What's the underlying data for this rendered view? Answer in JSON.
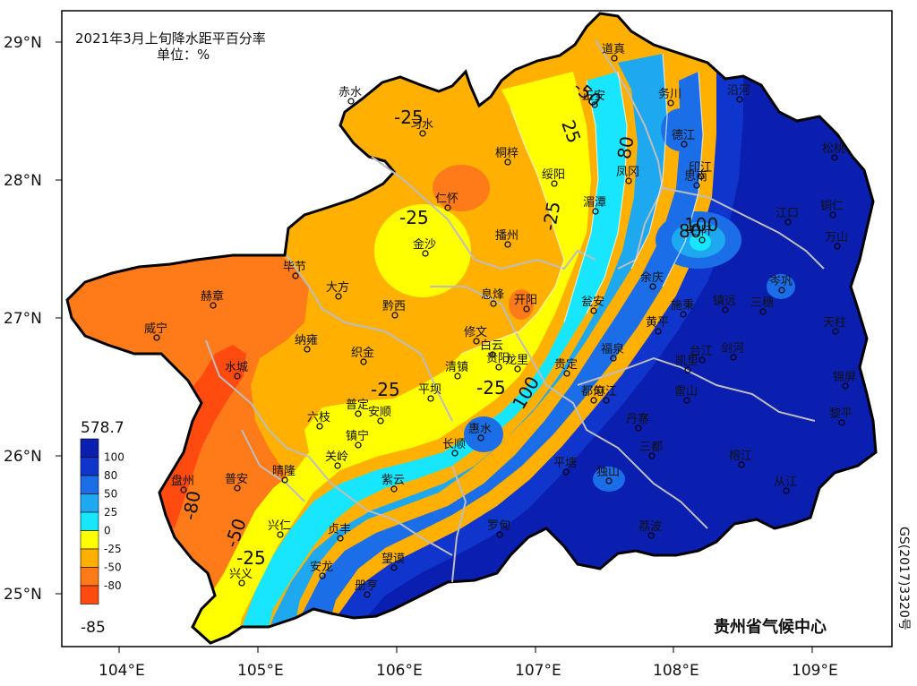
{
  "title": "2021年3月上旬降水距平百分率",
  "unit": "单位：%",
  "credit": "贵州省气候中心",
  "map_code": "GS(2017)3320号",
  "axes": {
    "lat_labels": [
      "29°N",
      "28°N",
      "27°N",
      "26°N",
      "25°N"
    ],
    "lon_labels": [
      "104°E",
      "105°E",
      "106°E",
      "107°E",
      "108°E",
      "109°E"
    ]
  },
  "legend": {
    "max_label": "578.7",
    "min_label": "-85",
    "levels": [
      "100",
      "80",
      "50",
      "25",
      "0",
      "-25",
      "-50",
      "-80"
    ],
    "colors": [
      "#0a1fb0",
      "#1035cc",
      "#1c6ee8",
      "#1ea8f0",
      "#18e6ff",
      "#ffff00",
      "#ffb000",
      "#ff7a18",
      "#ff4a10"
    ]
  },
  "contour_labels": [
    "-25",
    "-25",
    "25",
    "-50",
    "50",
    "80",
    "-25",
    "-25",
    "100",
    "80",
    "-25",
    "-50",
    "-25",
    "100",
    "-80"
  ],
  "stations": [
    "赤水",
    "习水",
    "桐梓",
    "绥阳",
    "道真",
    "正安",
    "务川",
    "沿河",
    "德江",
    "凤冈",
    "湄潭",
    "仁怀",
    "金沙",
    "播州",
    "印江",
    "思南",
    "松桃",
    "铜仁",
    "江口",
    "万山",
    "石阡",
    "余庆",
    "施秉",
    "镇远",
    "三穗",
    "岑巩",
    "天柱",
    "毕节",
    "大方",
    "黔西",
    "息烽",
    "开阳",
    "瓮安",
    "黄平",
    "赫章",
    "威宁",
    "纳雍",
    "织金",
    "修文",
    "白云",
    "清镇",
    "贵阳",
    "龙里",
    "贵定",
    "福泉",
    "凯里",
    "台江",
    "剑河",
    "锦屏",
    "雷山",
    "黎平",
    "水城",
    "六枝",
    "普定",
    "安顺",
    "平坝",
    "惠水",
    "长顺",
    "都匀",
    "麻江",
    "丹寨",
    "榕江",
    "从江",
    "三都",
    "平塘",
    "独山",
    "荔波",
    "罗甸",
    "紫云",
    "镇宁",
    "关岭",
    "晴隆",
    "普安",
    "盘州",
    "兴仁",
    "贞丰",
    "望谟",
    "安龙",
    "册亨",
    "兴义"
  ]
}
